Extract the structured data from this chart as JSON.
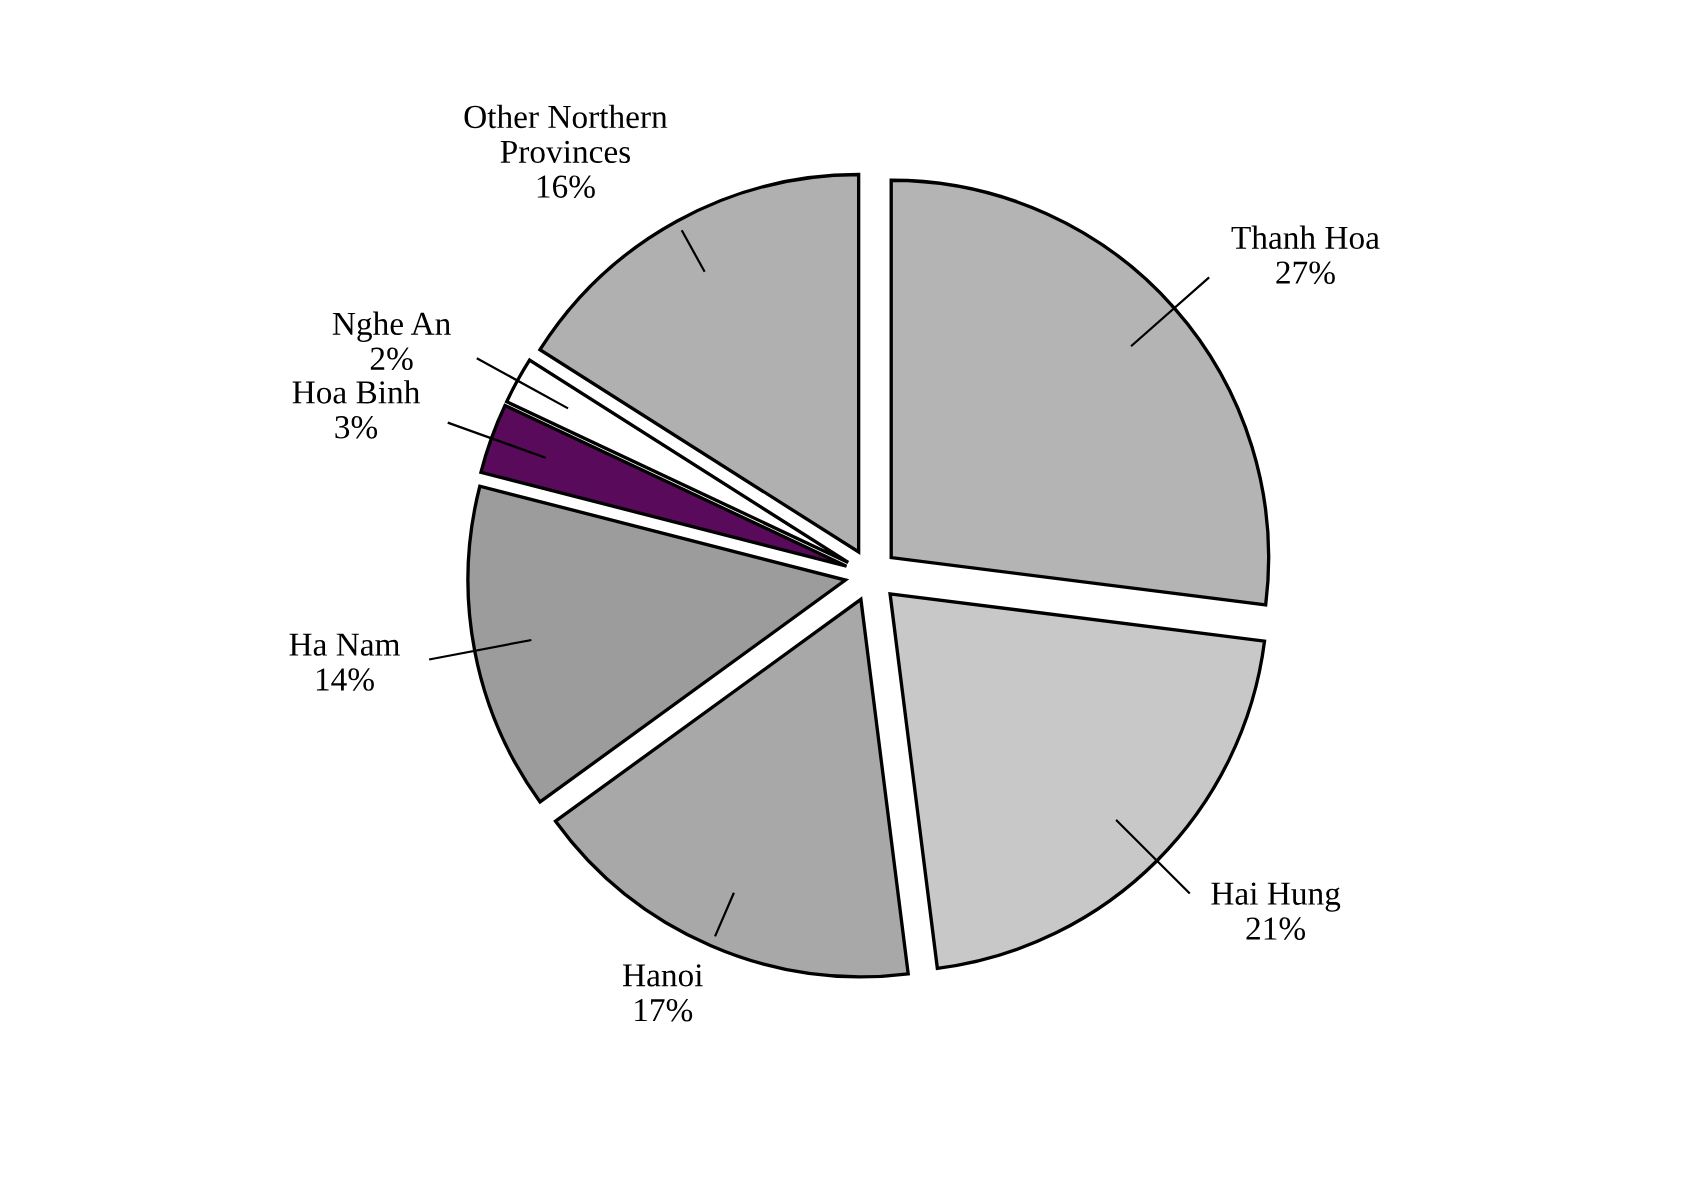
{
  "chart_data": {
    "type": "pie",
    "categories": [
      "Thanh Hoa",
      "Hai Hung",
      "Hanoi",
      "Ha Nam",
      "Hoa Binh",
      "Nghe An",
      "Other Northern Provinces"
    ],
    "values": [
      27,
      21,
      17,
      14,
      3,
      2,
      16
    ],
    "value_labels": [
      "27%",
      "21%",
      "17%",
      "14%",
      "3%",
      "2%",
      "16%"
    ],
    "colors": [
      "#b4b4b4",
      "#c8c8c8",
      "#a8a8a8",
      "#9c9c9c",
      "#5a0a5a",
      "#ffffff",
      "#b0b0b0"
    ],
    "legend": false
  }
}
